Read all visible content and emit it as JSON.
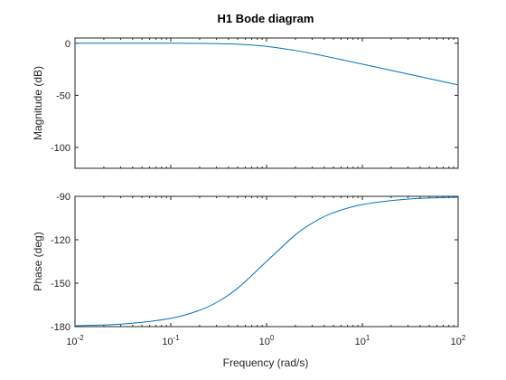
{
  "chart_data": {
    "title": "H1 Bode diagram",
    "colors": {
      "line": "#0072BD",
      "axes": "#262626"
    },
    "xlabel": "Frequency (rad/s)",
    "xscale": "log",
    "xlim": [
      0.01,
      100
    ],
    "xticks": [
      {
        "value": 0.01,
        "base": "10",
        "exp": "-2"
      },
      {
        "value": 0.1,
        "base": "10",
        "exp": "-1"
      },
      {
        "value": 1,
        "base": "10",
        "exp": "0"
      },
      {
        "value": 10,
        "base": "10",
        "exp": "1"
      },
      {
        "value": 100,
        "base": "10",
        "exp": "2"
      }
    ],
    "grid": false,
    "subplots": [
      {
        "type": "line",
        "ylabel": "Magnitude (dB)",
        "ylim": [
          -120,
          5
        ],
        "yticks": [
          0,
          -50,
          -100
        ],
        "x": [
          0.01,
          0.0316,
          0.1,
          0.2,
          0.316,
          0.5,
          1,
          2,
          3.16,
          5,
          10,
          31.6,
          100
        ],
        "y": [
          0,
          -0.004,
          -0.04,
          -0.17,
          -0.41,
          -0.97,
          -3.01,
          -6.99,
          -10.4,
          -14.15,
          -20.04,
          -30.01,
          -40.0
        ]
      },
      {
        "type": "line",
        "ylabel": "Phase (deg)",
        "ylim": [
          -180,
          -90
        ],
        "yticks": [
          -90,
          -120,
          -150,
          -180
        ],
        "x": [
          0.01,
          0.0316,
          0.1,
          0.2,
          0.316,
          0.5,
          1,
          2,
          3.16,
          5,
          10,
          31.6,
          100
        ],
        "y": [
          -179.4,
          -178.2,
          -174.3,
          -168.7,
          -162.5,
          -153.4,
          -135,
          -116.6,
          -107.6,
          -101.3,
          -95.7,
          -91.8,
          -90.6
        ]
      }
    ]
  }
}
